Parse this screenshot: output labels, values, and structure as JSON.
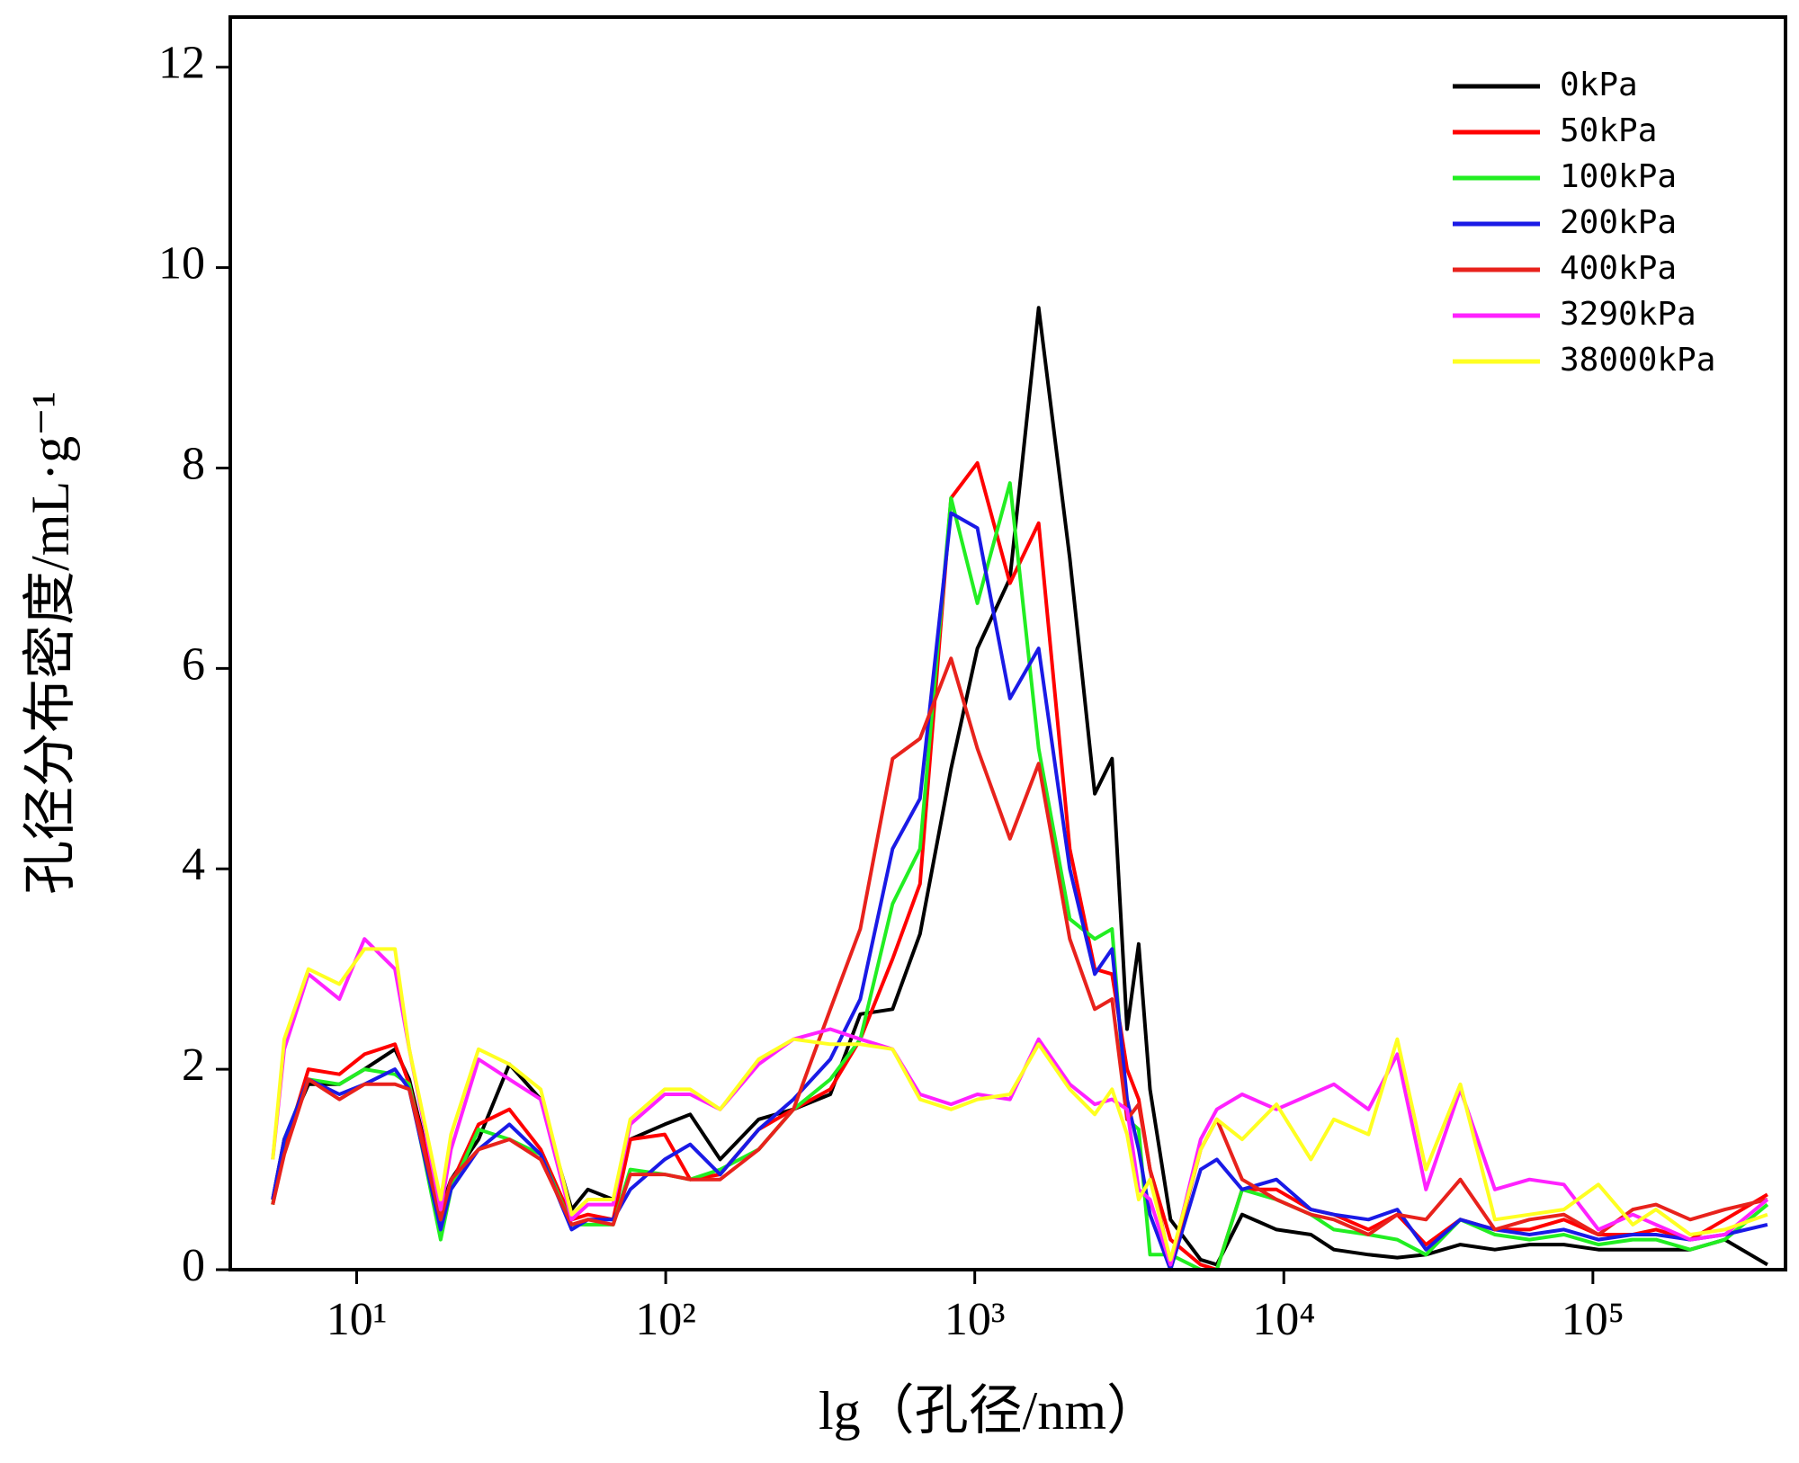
{
  "chart_data": {
    "type": "line",
    "ylabel": "孔径分布密度/mL·g⁻¹",
    "xlabel": "lg（孔径/nm）",
    "xlog": true,
    "xlim": [
      3.9,
      420000
    ],
    "ylim": [
      0,
      12.5
    ],
    "xticks": [
      {
        "value": 10,
        "label": "10¹"
      },
      {
        "value": 100,
        "label": "10²"
      },
      {
        "value": 1000,
        "label": "10³"
      },
      {
        "value": 10000,
        "label": "10⁴"
      },
      {
        "value": 100000,
        "label": "10⁵"
      }
    ],
    "yticks": [
      0,
      2,
      4,
      6,
      8,
      10,
      12
    ],
    "legend": "upper right",
    "x": [
      5.35,
      5.83,
      6.98,
      8.79,
      10.6,
      13.3,
      14.8,
      18.7,
      20.2,
      24.8,
      31.2,
      39.4,
      49.6,
      56,
      67.6,
      76.8,
      99.3,
      120,
      150,
      200,
      259,
      341,
      426,
      542,
      665,
      838,
      1020,
      1300,
      1610,
      2030,
      2445,
      2780,
      3110,
      3390,
      3690,
      4300,
      5380,
      6070,
      7330,
      9470,
      12240,
      14520,
      18790,
      23280,
      28840,
      37240,
      48190,
      62370,
      80540,
      104200,
      134600,
      160000,
      206500,
      267300,
      367000
    ],
    "series": [
      {
        "name": "0kPa",
        "color": "#000000",
        "values": [
          0.7,
          1.3,
          1.85,
          1.85,
          2.0,
          2.2,
          1.9,
          0.6,
          0.9,
          1.3,
          2.05,
          1.7,
          0.6,
          0.8,
          0.7,
          1.3,
          1.45,
          1.55,
          1.1,
          1.5,
          1.6,
          1.75,
          2.55,
          2.6,
          3.35,
          5.0,
          6.2,
          6.9,
          9.6,
          7.1,
          4.75,
          5.1,
          2.4,
          3.25,
          1.8,
          0.5,
          0.1,
          0.05,
          0.55,
          0.4,
          0.35,
          0.2,
          0.15,
          0.12,
          0.15,
          0.25,
          0.2,
          0.25,
          0.25,
          0.2,
          0.2,
          0.2,
          0.2,
          0.3,
          0.05
        ]
      },
      {
        "name": "50kPa",
        "color": "#ff0000",
        "values": [
          0.65,
          1.2,
          2.0,
          1.95,
          2.15,
          2.25,
          1.85,
          0.6,
          0.85,
          1.45,
          1.6,
          1.2,
          0.5,
          0.55,
          0.5,
          1.3,
          1.35,
          0.9,
          0.95,
          1.4,
          1.6,
          1.8,
          2.3,
          3.1,
          3.85,
          7.7,
          8.05,
          6.85,
          7.45,
          4.2,
          3.0,
          2.95,
          2.0,
          1.7,
          1.0,
          0.3,
          0.05,
          0.0,
          0.8,
          0.8,
          0.6,
          0.55,
          0.4,
          0.55,
          0.25,
          0.5,
          0.4,
          0.4,
          0.5,
          0.35,
          0.35,
          0.4,
          0.3,
          0.5,
          0.75
        ]
      },
      {
        "name": "100kPa",
        "color": "#22ee22",
        "values": [
          0.65,
          1.3,
          1.9,
          1.85,
          2.0,
          1.95,
          1.85,
          0.3,
          0.8,
          1.4,
          1.3,
          1.15,
          0.45,
          0.45,
          0.45,
          1.0,
          0.95,
          0.9,
          1.0,
          1.2,
          1.6,
          1.9,
          2.3,
          3.65,
          4.2,
          7.7,
          6.65,
          7.85,
          5.2,
          3.5,
          3.3,
          3.4,
          1.5,
          1.4,
          0.15,
          0.15,
          0.0,
          0.0,
          0.8,
          0.7,
          0.55,
          0.4,
          0.35,
          0.3,
          0.15,
          0.5,
          0.35,
          0.3,
          0.35,
          0.25,
          0.3,
          0.3,
          0.2,
          0.3,
          0.65
        ]
      },
      {
        "name": "200kPa",
        "color": "#1a1ae6",
        "values": [
          0.7,
          1.3,
          1.9,
          1.75,
          1.85,
          2.0,
          1.8,
          0.4,
          0.8,
          1.2,
          1.45,
          1.15,
          0.4,
          0.5,
          0.5,
          0.8,
          1.1,
          1.25,
          0.95,
          1.4,
          1.7,
          2.1,
          2.7,
          4.2,
          4.7,
          7.55,
          7.4,
          5.7,
          6.2,
          4.0,
          2.95,
          3.2,
          1.7,
          1.2,
          0.55,
          0.0,
          1.0,
          1.1,
          0.8,
          0.9,
          0.6,
          0.55,
          0.5,
          0.6,
          0.2,
          0.5,
          0.4,
          0.35,
          0.4,
          0.3,
          0.35,
          0.35,
          0.3,
          0.35,
          0.45
        ]
      },
      {
        "name": "400kPa",
        "color": "#e8221c",
        "values": [
          0.65,
          1.15,
          1.9,
          1.7,
          1.85,
          1.85,
          1.8,
          0.5,
          0.9,
          1.2,
          1.3,
          1.1,
          0.45,
          0.5,
          0.45,
          0.95,
          0.95,
          0.9,
          0.9,
          1.2,
          1.6,
          2.6,
          3.4,
          5.1,
          5.3,
          6.1,
          5.2,
          4.3,
          5.05,
          3.3,
          2.6,
          2.7,
          1.5,
          1.65,
          1.0,
          0.05,
          1.2,
          1.5,
          0.9,
          0.7,
          0.55,
          0.5,
          0.35,
          0.55,
          0.5,
          0.9,
          0.4,
          0.5,
          0.55,
          0.35,
          0.6,
          0.65,
          0.5,
          0.6,
          0.7
        ]
      },
      {
        "name": "3290kPa",
        "color": "#ff22ff",
        "values": [
          1.1,
          2.2,
          2.95,
          2.7,
          3.3,
          3.0,
          2.2,
          0.6,
          1.2,
          2.1,
          1.9,
          1.7,
          0.5,
          0.65,
          0.65,
          1.45,
          1.75,
          1.75,
          1.6,
          2.05,
          2.3,
          2.4,
          2.3,
          2.2,
          1.75,
          1.65,
          1.75,
          1.7,
          2.3,
          1.85,
          1.65,
          1.7,
          1.6,
          0.8,
          0.7,
          0.05,
          1.3,
          1.6,
          1.75,
          1.6,
          1.75,
          1.85,
          1.6,
          2.15,
          0.8,
          1.8,
          0.8,
          0.9,
          0.85,
          0.4,
          0.55,
          0.45,
          0.3,
          0.35,
          0.7
        ]
      },
      {
        "name": "38000kPa",
        "color": "#ffff22",
        "values": [
          1.1,
          2.3,
          3.0,
          2.85,
          3.2,
          3.2,
          2.2,
          0.7,
          1.35,
          2.2,
          2.05,
          1.8,
          0.55,
          0.7,
          0.7,
          1.5,
          1.8,
          1.8,
          1.6,
          2.1,
          2.3,
          2.25,
          2.25,
          2.2,
          1.7,
          1.6,
          1.7,
          1.75,
          2.25,
          1.8,
          1.55,
          1.8,
          1.35,
          0.7,
          0.9,
          0.1,
          1.2,
          1.5,
          1.3,
          1.65,
          1.1,
          1.5,
          1.35,
          2.3,
          1.0,
          1.85,
          0.5,
          0.55,
          0.6,
          0.85,
          0.45,
          0.6,
          0.35,
          0.4,
          0.55
        ]
      }
    ]
  }
}
